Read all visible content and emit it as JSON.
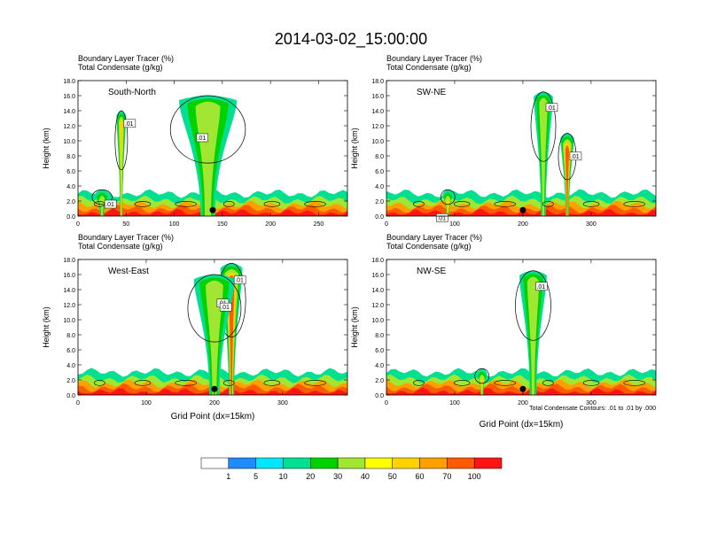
{
  "figure": {
    "title": "2014-03-02_15:00:00",
    "contour_note": "Total Condensate Contours: .01 to .01 by .000"
  },
  "colors": {
    "bins": [
      "#ffffff",
      "#1e8cff",
      "#00e6ff",
      "#00e090",
      "#00d200",
      "#a0e632",
      "#ffff00",
      "#ffd200",
      "#ffa000",
      "#ff5a00",
      "#ff1414"
    ],
    "contour": "#000000"
  },
  "chart_data": [
    {
      "type": "heatmap",
      "panel_label": "South-North",
      "header": [
        "Boundary Layer Tracer    (%)",
        "Total Condensate   (g/kg)"
      ],
      "xlabel": "",
      "ylabel": "Height (km)",
      "xlim": [
        0,
        280
      ],
      "ylim": [
        0,
        18
      ],
      "xticks": [
        0,
        50,
        100,
        150,
        200,
        250
      ],
      "yticks": [
        "0.0",
        "2.0",
        "4.0",
        "6.0",
        "8.0",
        "10.0",
        "12.0",
        "14.0",
        "16.0",
        "18.0"
      ],
      "marker_x": 140,
      "contour_labels": [
        ".01",
        ".01",
        ".01"
      ],
      "plumes": [
        {
          "x": 45,
          "top": 14,
          "w": 5,
          "v": 60
        },
        {
          "x": 25,
          "top": 3.5,
          "w": 8,
          "v": 40
        },
        {
          "x": 135,
          "top": 16,
          "w": 30,
          "v": 30
        }
      ]
    },
    {
      "type": "heatmap",
      "panel_label": "SW-NE",
      "header": [
        "Boundary Layer Tracer    (%)",
        "Total Condensate   (g/kg)"
      ],
      "xlabel": "",
      "ylabel": "Height (km)",
      "xlim": [
        0,
        395
      ],
      "ylim": [
        0,
        18
      ],
      "xticks": [
        0,
        100,
        200,
        300
      ],
      "yticks": [
        "0.0",
        "2.0",
        "4.0",
        "6.0",
        "8.0",
        "10.0",
        "12.0",
        "14.0",
        "16.0",
        "18.0"
      ],
      "marker_x": 200,
      "contour_labels": [
        ".01",
        ".01",
        ".01"
      ],
      "plumes": [
        {
          "x": 230,
          "top": 16.5,
          "w": 14,
          "v": 40
        },
        {
          "x": 265,
          "top": 11,
          "w": 10,
          "v": 70
        },
        {
          "x": 90,
          "top": 3.5,
          "w": 8,
          "v": 50
        }
      ]
    },
    {
      "type": "heatmap",
      "panel_label": "West-East",
      "header": [
        "Boundary Layer Tracer    (%)",
        "Total Condensate   (g/kg)"
      ],
      "xlabel": "Grid Point (dx=15km)",
      "ylabel": "Height (km)",
      "xlim": [
        0,
        395
      ],
      "ylim": [
        0,
        18
      ],
      "xticks": [
        0,
        100,
        200,
        300
      ],
      "yticks": [
        "0.0",
        "2.0",
        "4.0",
        "6.0",
        "8.0",
        "10.0",
        "12.0",
        "14.0",
        "16.0",
        "18.0"
      ],
      "marker_x": 200,
      "contour_labels": [
        ".01",
        ".01",
        ".01"
      ],
      "plumes": [
        {
          "x": 225,
          "top": 17.5,
          "w": 16,
          "v": 70
        },
        {
          "x": 200,
          "top": 16,
          "w": 30,
          "v": 30
        }
      ]
    },
    {
      "type": "heatmap",
      "panel_label": "NW-SE",
      "header": [
        "Boundary Layer Tracer    (%)",
        "Total Condensate   (g/kg)"
      ],
      "xlabel": "Grid Point (dx=15km)",
      "ylabel": "Height (km)",
      "xlim": [
        0,
        395
      ],
      "ylim": [
        0,
        18
      ],
      "xticks": [
        0,
        100,
        200,
        300
      ],
      "yticks": [
        "0.0",
        "2.0",
        "4.0",
        "6.0",
        "8.0",
        "10.0",
        "12.0",
        "14.0",
        "16.0",
        "18.0"
      ],
      "marker_x": 200,
      "contour_labels": [
        ".01"
      ],
      "plumes": [
        {
          "x": 215,
          "top": 16.5,
          "w": 20,
          "v": 30
        },
        {
          "x": 140,
          "top": 3.5,
          "w": 8,
          "v": 60
        }
      ]
    }
  ],
  "colorbar": {
    "labels": [
      "1",
      "5",
      "10",
      "20",
      "30",
      "40",
      "50",
      "60",
      "70",
      "100"
    ]
  }
}
